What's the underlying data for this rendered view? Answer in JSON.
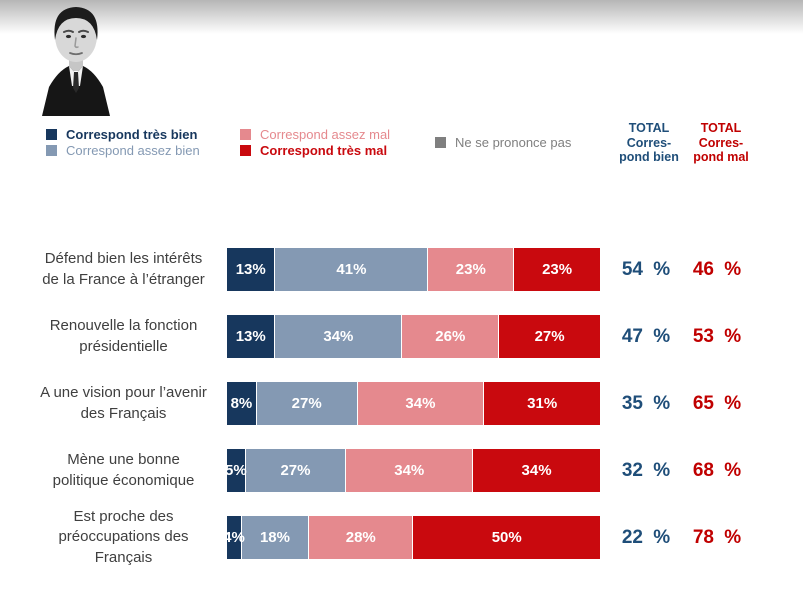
{
  "icons": {
    "portrait": "emmanuel-macron-grayscale-photo"
  },
  "legend": {
    "items": [
      {
        "label": "Correspond très bien",
        "color": "#17375d",
        "bold": true
      },
      {
        "label": "Correspond assez bien",
        "color": "#8499b3",
        "bold": false
      },
      {
        "label": "Correspond assez mal",
        "color": "#e5898e",
        "bold": false
      },
      {
        "label": "Correspond très mal",
        "color": "#c9090e",
        "bold": true
      },
      {
        "label": "Ne se prononce pas",
        "color": "#7f7f7f",
        "bold": false
      }
    ],
    "total_bien": {
      "l1": "TOTAL",
      "l2": "Corres-",
      "l3": "pond bien",
      "color": "#1f4e79"
    },
    "total_mal": {
      "l1": "TOTAL",
      "l2": "Corres-",
      "l3": "pond mal",
      "color": "#c00000"
    }
  },
  "chart_data": {
    "type": "bar",
    "orientation": "horizontal_stacked",
    "unit": "%",
    "xlim": [
      0,
      100
    ],
    "legend_position": "top",
    "categories": [
      "Défend bien les intérêts de la France à l’étranger",
      "Renouvelle la fonction présidentielle",
      "A une vision pour l’avenir des Français",
      "Mène une bonne politique économique",
      "Est proche des préoccupations des Français"
    ],
    "categories_lines": [
      [
        "Défend bien les intérêts",
        "de la France à l’étranger"
      ],
      [
        "Renouvelle la fonction",
        "présidentielle"
      ],
      [
        "A une vision pour l’avenir",
        "des Français"
      ],
      [
        "Mène une bonne",
        "politique économique"
      ],
      [
        "Est proche des",
        "préoccupations des",
        "Français"
      ]
    ],
    "series": [
      {
        "name": "Correspond très bien",
        "color": "#17375d",
        "values": [
          13,
          13,
          8,
          5,
          4
        ]
      },
      {
        "name": "Correspond assez bien",
        "color": "#8499b3",
        "values": [
          41,
          34,
          27,
          27,
          18
        ]
      },
      {
        "name": "Correspond assez mal",
        "color": "#e5898e",
        "values": [
          23,
          26,
          34,
          34,
          28
        ]
      },
      {
        "name": "Correspond très mal",
        "color": "#c9090e",
        "values": [
          23,
          27,
          31,
          34,
          50
        ]
      }
    ],
    "totals": {
      "bien": [
        54,
        47,
        35,
        32,
        22
      ],
      "mal": [
        46,
        53,
        65,
        68,
        78
      ]
    }
  }
}
